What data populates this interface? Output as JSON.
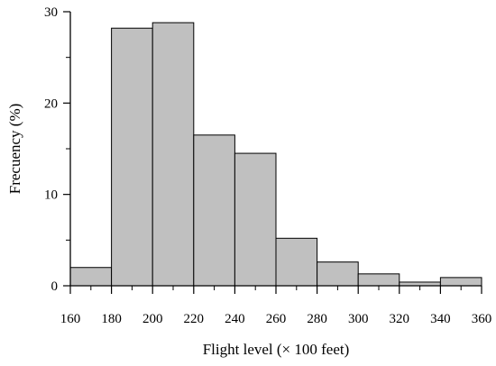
{
  "chart_data": {
    "type": "bar",
    "bin_edges": [
      160,
      180,
      200,
      220,
      240,
      260,
      280,
      300,
      320,
      340,
      360
    ],
    "values": [
      2.0,
      28.2,
      28.8,
      16.5,
      14.5,
      5.2,
      2.6,
      1.3,
      0.4,
      0.9
    ],
    "xlabel": "Flight level (× 100 feet)",
    "ylabel": "Frecuency (%)",
    "xlim": [
      160,
      360
    ],
    "ylim": [
      0,
      30
    ],
    "xticks": [
      "160",
      "180",
      "200",
      "220",
      "240",
      "260",
      "280",
      "300",
      "320",
      "340",
      "360"
    ],
    "yticks": [
      "0",
      "10",
      "20",
      "30"
    ],
    "bar_color": "#c0c0c0",
    "edge_color": "#000000",
    "grid": false,
    "legend": "none"
  }
}
